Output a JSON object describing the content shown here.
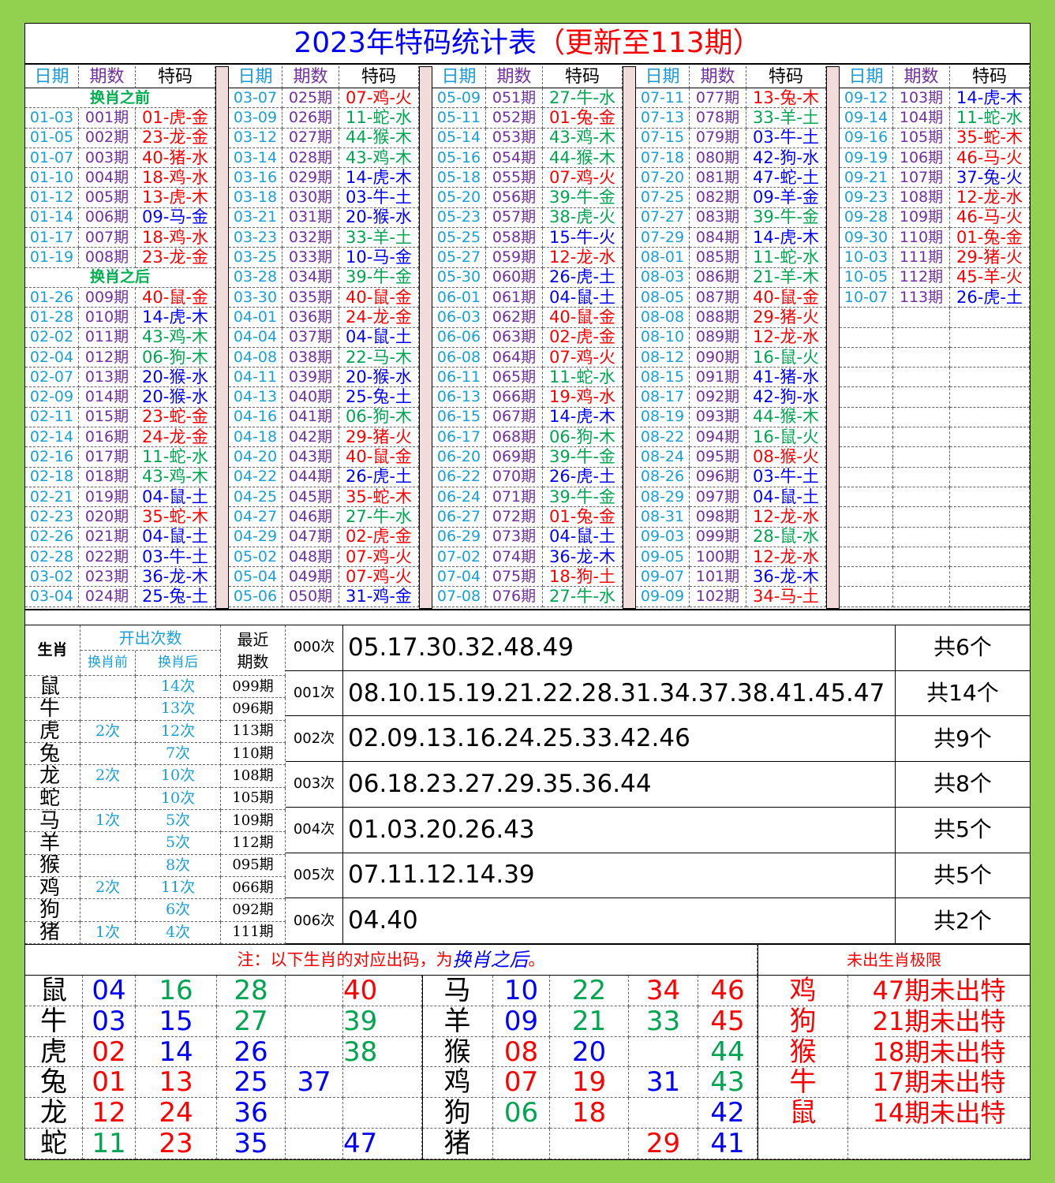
{
  "title": "2023年特码统计表",
  "title_note": "（更新至113期）",
  "palette": {
    "red": "#ff0000",
    "blue": "#0000ff",
    "green": "#00a550"
  },
  "draws": {
    "headers": [
      "日期",
      "期数",
      "特码"
    ],
    "before_label": "换肖之前",
    "before": [
      [
        "01-03",
        "001期",
        "01-虎-金",
        "red"
      ],
      [
        "01-05",
        "002期",
        "23-龙-金",
        "red"
      ],
      [
        "01-07",
        "003期",
        "40-猪-水",
        "red"
      ],
      [
        "01-10",
        "004期",
        "18-鸡-水",
        "red"
      ],
      [
        "01-12",
        "005期",
        "13-虎-木",
        "red"
      ],
      [
        "01-14",
        "006期",
        "09-马-金",
        "blue"
      ],
      [
        "01-17",
        "007期",
        "18-鸡-水",
        "red"
      ],
      [
        "01-19",
        "008期",
        "23-龙-金",
        "red"
      ]
    ],
    "after_label": "换肖之后",
    "after": [
      [
        "01-26",
        "009期",
        "40-鼠-金",
        "red"
      ],
      [
        "01-28",
        "010期",
        "14-虎-木",
        "blue"
      ],
      [
        "02-02",
        "011期",
        "43-鸡-木",
        "green"
      ],
      [
        "02-04",
        "012期",
        "06-狗-木",
        "green"
      ],
      [
        "02-07",
        "013期",
        "20-猴-水",
        "blue"
      ],
      [
        "02-09",
        "014期",
        "20-猴-水",
        "blue"
      ],
      [
        "02-11",
        "015期",
        "23-蛇-金",
        "red"
      ],
      [
        "02-14",
        "016期",
        "24-龙-金",
        "red"
      ],
      [
        "02-16",
        "017期",
        "11-蛇-水",
        "green"
      ],
      [
        "02-18",
        "018期",
        "43-鸡-木",
        "green"
      ],
      [
        "02-21",
        "019期",
        "04-鼠-土",
        "blue"
      ],
      [
        "02-23",
        "020期",
        "35-蛇-木",
        "red"
      ],
      [
        "02-26",
        "021期",
        "04-鼠-土",
        "blue"
      ],
      [
        "02-28",
        "022期",
        "03-牛-土",
        "blue"
      ],
      [
        "03-02",
        "023期",
        "36-龙-木",
        "blue"
      ],
      [
        "03-04",
        "024期",
        "25-兔-土",
        "blue"
      ]
    ],
    "columns": [
      [
        [
          "03-07",
          "025期",
          "07-鸡-火",
          "red"
        ],
        [
          "03-09",
          "026期",
          "11-蛇-水",
          "green"
        ],
        [
          "03-12",
          "027期",
          "44-猴-木",
          "green"
        ],
        [
          "03-14",
          "028期",
          "43-鸡-木",
          "green"
        ],
        [
          "03-16",
          "029期",
          "14-虎-木",
          "blue"
        ],
        [
          "03-18",
          "030期",
          "03-牛-土",
          "blue"
        ],
        [
          "03-21",
          "031期",
          "20-猴-水",
          "blue"
        ],
        [
          "03-23",
          "032期",
          "33-羊-土",
          "green"
        ],
        [
          "03-25",
          "033期",
          "10-马-金",
          "blue"
        ],
        [
          "03-28",
          "034期",
          "39-牛-金",
          "green"
        ],
        [
          "03-30",
          "035期",
          "40-鼠-金",
          "red"
        ],
        [
          "04-01",
          "036期",
          "24-龙-金",
          "red"
        ],
        [
          "04-04",
          "037期",
          "04-鼠-土",
          "blue"
        ],
        [
          "04-08",
          "038期",
          "22-马-木",
          "green"
        ],
        [
          "04-11",
          "039期",
          "20-猴-水",
          "blue"
        ],
        [
          "04-13",
          "040期",
          "25-兔-土",
          "blue"
        ],
        [
          "04-16",
          "041期",
          "06-狗-木",
          "green"
        ],
        [
          "04-18",
          "042期",
          "29-猪-火",
          "red"
        ],
        [
          "04-20",
          "043期",
          "40-鼠-金",
          "red"
        ],
        [
          "04-22",
          "044期",
          "26-虎-土",
          "blue"
        ],
        [
          "04-25",
          "045期",
          "35-蛇-木",
          "red"
        ],
        [
          "04-27",
          "046期",
          "27-牛-水",
          "green"
        ],
        [
          "04-29",
          "047期",
          "02-虎-金",
          "red"
        ],
        [
          "05-02",
          "048期",
          "07-鸡-火",
          "red"
        ],
        [
          "05-04",
          "049期",
          "07-鸡-火",
          "red"
        ],
        [
          "05-06",
          "050期",
          "31-鸡-金",
          "blue"
        ]
      ],
      [
        [
          "05-09",
          "051期",
          "27-牛-水",
          "green"
        ],
        [
          "05-11",
          "052期",
          "01-兔-金",
          "red"
        ],
        [
          "05-14",
          "053期",
          "43-鸡-木",
          "green"
        ],
        [
          "05-16",
          "054期",
          "44-猴-木",
          "green"
        ],
        [
          "05-18",
          "055期",
          "07-鸡-火",
          "red"
        ],
        [
          "05-20",
          "056期",
          "39-牛-金",
          "green"
        ],
        [
          "05-23",
          "057期",
          "38-虎-火",
          "green"
        ],
        [
          "05-25",
          "058期",
          "15-牛-火",
          "blue"
        ],
        [
          "05-27",
          "059期",
          "12-龙-水",
          "red"
        ],
        [
          "05-30",
          "060期",
          "26-虎-土",
          "blue"
        ],
        [
          "06-01",
          "061期",
          "04-鼠-土",
          "blue"
        ],
        [
          "06-03",
          "062期",
          "40-鼠-金",
          "red"
        ],
        [
          "06-06",
          "063期",
          "02-虎-金",
          "red"
        ],
        [
          "06-08",
          "064期",
          "07-鸡-火",
          "red"
        ],
        [
          "06-11",
          "065期",
          "11-蛇-水",
          "green"
        ],
        [
          "06-13",
          "066期",
          "19-鸡-水",
          "red"
        ],
        [
          "06-15",
          "067期",
          "14-虎-木",
          "blue"
        ],
        [
          "06-17",
          "068期",
          "06-狗-木",
          "green"
        ],
        [
          "06-20",
          "069期",
          "39-牛-金",
          "green"
        ],
        [
          "06-22",
          "070期",
          "26-虎-土",
          "blue"
        ],
        [
          "06-24",
          "071期",
          "39-牛-金",
          "green"
        ],
        [
          "06-27",
          "072期",
          "01-兔-金",
          "red"
        ],
        [
          "06-29",
          "073期",
          "04-鼠-土",
          "blue"
        ],
        [
          "07-02",
          "074期",
          "36-龙-木",
          "blue"
        ],
        [
          "07-04",
          "075期",
          "18-狗-土",
          "red"
        ],
        [
          "07-08",
          "076期",
          "27-牛-水",
          "green"
        ]
      ],
      [
        [
          "07-11",
          "077期",
          "13-兔-木",
          "red"
        ],
        [
          "07-13",
          "078期",
          "33-羊-土",
          "green"
        ],
        [
          "07-15",
          "079期",
          "03-牛-土",
          "blue"
        ],
        [
          "07-18",
          "080期",
          "42-狗-水",
          "blue"
        ],
        [
          "07-20",
          "081期",
          "47-蛇-土",
          "blue"
        ],
        [
          "07-25",
          "082期",
          "09-羊-金",
          "blue"
        ],
        [
          "07-27",
          "083期",
          "39-牛-金",
          "green"
        ],
        [
          "07-29",
          "084期",
          "14-虎-木",
          "blue"
        ],
        [
          "08-01",
          "085期",
          "11-蛇-水",
          "green"
        ],
        [
          "08-03",
          "086期",
          "21-羊-木",
          "green"
        ],
        [
          "08-05",
          "087期",
          "40-鼠-金",
          "red"
        ],
        [
          "08-08",
          "088期",
          "29-猪-火",
          "red"
        ],
        [
          "08-10",
          "089期",
          "12-龙-水",
          "red"
        ],
        [
          "08-12",
          "090期",
          "16-鼠-火",
          "green"
        ],
        [
          "08-15",
          "091期",
          "41-猪-水",
          "blue"
        ],
        [
          "08-17",
          "092期",
          "42-狗-水",
          "blue"
        ],
        [
          "08-19",
          "093期",
          "44-猴-木",
          "green"
        ],
        [
          "08-22",
          "094期",
          "16-鼠-火",
          "green"
        ],
        [
          "08-24",
          "095期",
          "08-猴-火",
          "red"
        ],
        [
          "08-26",
          "096期",
          "03-牛-土",
          "blue"
        ],
        [
          "08-29",
          "097期",
          "04-鼠-土",
          "blue"
        ],
        [
          "08-31",
          "098期",
          "12-龙-水",
          "red"
        ],
        [
          "09-03",
          "099期",
          "28-鼠-水",
          "green"
        ],
        [
          "09-05",
          "100期",
          "12-龙-水",
          "red"
        ],
        [
          "09-07",
          "101期",
          "36-龙-木",
          "blue"
        ],
        [
          "09-09",
          "102期",
          "34-马-土",
          "red"
        ]
      ],
      [
        [
          "09-12",
          "103期",
          "14-虎-木",
          "blue"
        ],
        [
          "09-14",
          "104期",
          "11-蛇-水",
          "green"
        ],
        [
          "09-16",
          "105期",
          "35-蛇-木",
          "red"
        ],
        [
          "09-19",
          "106期",
          "46-马-火",
          "red"
        ],
        [
          "09-21",
          "107期",
          "37-兔-火",
          "blue"
        ],
        [
          "09-23",
          "108期",
          "12-龙-水",
          "red"
        ],
        [
          "09-28",
          "109期",
          "46-马-火",
          "red"
        ],
        [
          "09-30",
          "110期",
          "01-兔-金",
          "red"
        ],
        [
          "10-03",
          "111期",
          "29-猪-火",
          "red"
        ],
        [
          "10-05",
          "112期",
          "45-羊-火",
          "red"
        ],
        [
          "10-07",
          "113期",
          "26-虎-土",
          "blue"
        ]
      ]
    ]
  },
  "zodiac_stats": {
    "header_zodiac": "生肖",
    "header_count": "开出次数",
    "header_before": "换肖前",
    "header_after": "换肖后",
    "header_recent": "最近期数",
    "rows": [
      [
        "鼠",
        null,
        "14次",
        "099期"
      ],
      [
        "牛",
        null,
        "13次",
        "096期"
      ],
      [
        "虎",
        "2次",
        "12次",
        "113期"
      ],
      [
        "兔",
        null,
        "7次",
        "110期"
      ],
      [
        "龙",
        "2次",
        "10次",
        "108期"
      ],
      [
        "蛇",
        null,
        "10次",
        "105期"
      ],
      [
        "马",
        "1次",
        "5次",
        "109期"
      ],
      [
        "羊",
        null,
        "5次",
        "112期"
      ],
      [
        "猴",
        null,
        "8次",
        "095期"
      ],
      [
        "鸡",
        "2次",
        "11次",
        "066期"
      ],
      [
        "狗",
        null,
        "6次",
        "092期"
      ],
      [
        "猪",
        "1次",
        "4次",
        "111期"
      ]
    ]
  },
  "frequency": {
    "rows": [
      [
        "000次",
        "05.17.30.32.48.49",
        "共6个"
      ],
      [
        "001次",
        "08.10.15.19.21.22.28.31.34.37.38.41.45.47",
        "共14个"
      ],
      [
        "002次",
        "02.09.13.16.24.25.33.42.46",
        "共9个"
      ],
      [
        "003次",
        "06.18.23.27.29.35.36.44",
        "共8个"
      ],
      [
        "004次",
        "01.03.20.26.43",
        "共5个"
      ],
      [
        "005次",
        "07.11.12.14.39",
        "共5个"
      ],
      [
        "006次",
        "04.40",
        "共2个"
      ]
    ]
  },
  "note": {
    "parts": [
      "注：以下生肖的对应出码，为",
      "换肖之后",
      "。"
    ]
  },
  "numbers_left": [
    {
      "zodiac": "鼠",
      "nums": [
        "04",
        "16",
        "28",
        null,
        "40"
      ],
      "colors": [
        "blue",
        "green",
        "green",
        null,
        "red"
      ]
    },
    {
      "zodiac": "牛",
      "nums": [
        "03",
        "15",
        "27",
        null,
        "39"
      ],
      "colors": [
        "blue",
        "blue",
        "green",
        null,
        "green"
      ]
    },
    {
      "zodiac": "虎",
      "nums": [
        "02",
        "14",
        "26",
        null,
        "38"
      ],
      "colors": [
        "red",
        "blue",
        "blue",
        null,
        "green"
      ]
    },
    {
      "zodiac": "兔",
      "nums": [
        "01",
        "13",
        "25",
        "37",
        null
      ],
      "colors": [
        "red",
        "red",
        "blue",
        "blue",
        null
      ]
    },
    {
      "zodiac": "龙",
      "nums": [
        "12",
        "24",
        "36",
        null,
        null
      ],
      "colors": [
        "red",
        "red",
        "blue",
        null,
        null
      ]
    },
    {
      "zodiac": "蛇",
      "nums": [
        "11",
        "23",
        "35",
        null,
        "47"
      ],
      "colors": [
        "green",
        "red",
        "blue",
        null,
        "blue"
      ]
    }
  ],
  "numbers_right": [
    {
      "zodiac": "马",
      "nums": [
        "10",
        "22",
        "34",
        "46"
      ],
      "colors": [
        "blue",
        "green",
        "red",
        "red"
      ]
    },
    {
      "zodiac": "羊",
      "nums": [
        "09",
        "21",
        "33",
        "45"
      ],
      "colors": [
        "blue",
        "green",
        "green",
        "red"
      ]
    },
    {
      "zodiac": "猴",
      "nums": [
        "08",
        "20",
        null,
        "44"
      ],
      "colors": [
        "red",
        "blue",
        null,
        "green"
      ]
    },
    {
      "zodiac": "鸡",
      "nums": [
        "07",
        "19",
        "31",
        "43"
      ],
      "colors": [
        "red",
        "red",
        "blue",
        "green"
      ]
    },
    {
      "zodiac": "狗",
      "nums": [
        "06",
        "18",
        null,
        "42"
      ],
      "colors": [
        "green",
        "red",
        null,
        "blue"
      ]
    },
    {
      "zodiac": "猪",
      "nums": [
        null,
        null,
        "29",
        "41"
      ],
      "colors": [
        null,
        null,
        "red",
        "blue"
      ]
    }
  ],
  "drought": {
    "title": "未出生肖极限",
    "rows": [
      [
        "鸡",
        "47期未出特"
      ],
      [
        "狗",
        "21期未出特"
      ],
      [
        "猴",
        "18期未出特"
      ],
      [
        "牛",
        "17期未出特"
      ],
      [
        "鼠",
        "14期未出特"
      ]
    ]
  }
}
